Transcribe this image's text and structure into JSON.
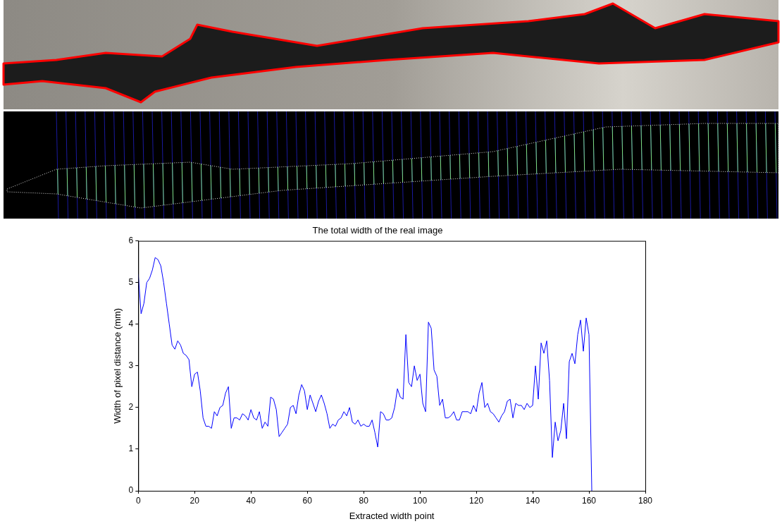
{
  "chart_data": {
    "type": "line",
    "title": "The total width of the real image",
    "x_label": "Extracted width point",
    "y_label": "Width of pixel distance (mm)",
    "color": "#0000ff",
    "grid": false,
    "xlim": [
      0,
      180
    ],
    "xticks": [
      0,
      20,
      40,
      60,
      80,
      100,
      120,
      140,
      160,
      180
    ],
    "ylim": [
      0,
      6
    ],
    "yticks": [
      0,
      1,
      2,
      3,
      4,
      5,
      6
    ],
    "x": [
      0,
      1,
      2,
      3,
      4,
      5,
      6,
      7,
      8,
      9,
      10,
      11,
      12,
      13,
      14,
      15,
      16,
      17,
      18,
      19,
      20,
      21,
      22,
      23,
      24,
      25,
      26,
      27,
      28,
      29,
      30,
      31,
      32,
      33,
      34,
      35,
      36,
      37,
      38,
      39,
      40,
      41,
      42,
      43,
      44,
      45,
      46,
      47,
      48,
      49,
      50,
      51,
      52,
      53,
      54,
      55,
      56,
      57,
      58,
      59,
      60,
      61,
      62,
      63,
      64,
      65,
      66,
      67,
      68,
      69,
      70,
      71,
      72,
      73,
      74,
      75,
      76,
      77,
      78,
      79,
      80,
      81,
      82,
      83,
      84,
      85,
      86,
      87,
      88,
      89,
      90,
      91,
      92,
      93,
      94,
      95,
      96,
      97,
      98,
      99,
      100,
      101,
      102,
      103,
      104,
      105,
      106,
      107,
      108,
      109,
      110,
      111,
      112,
      113,
      114,
      115,
      116,
      117,
      118,
      119,
      120,
      121,
      122,
      123,
      124,
      125,
      126,
      127,
      128,
      129,
      130,
      131,
      132,
      133,
      134,
      135,
      136,
      137,
      138,
      139,
      140,
      141,
      142,
      143,
      144,
      145,
      146,
      147,
      148,
      149,
      150,
      151,
      152,
      153,
      154,
      155,
      156,
      157,
      158,
      159,
      160,
      161
    ],
    "values": [
      5.2,
      4.25,
      4.5,
      5.0,
      5.1,
      5.3,
      5.6,
      5.55,
      5.4,
      5.0,
      4.5,
      4.0,
      3.5,
      3.4,
      3.6,
      3.5,
      3.3,
      3.25,
      3.15,
      2.5,
      2.8,
      2.85,
      2.4,
      1.75,
      1.55,
      1.55,
      1.5,
      1.9,
      1.8,
      2.0,
      2.05,
      2.35,
      2.5,
      1.5,
      1.75,
      1.75,
      1.7,
      1.85,
      1.8,
      1.7,
      1.95,
      1.75,
      1.7,
      1.9,
      1.5,
      1.65,
      1.55,
      2.25,
      2.2,
      1.95,
      1.3,
      1.4,
      1.5,
      1.6,
      2.0,
      2.05,
      1.85,
      2.3,
      2.55,
      2.4,
      1.95,
      2.3,
      2.1,
      1.9,
      2.15,
      2.3,
      2.1,
      1.85,
      1.5,
      1.6,
      1.55,
      1.7,
      1.75,
      1.9,
      1.8,
      2.0,
      1.65,
      1.6,
      1.7,
      1.55,
      1.6,
      1.55,
      1.55,
      1.7,
      1.4,
      1.05,
      1.9,
      1.85,
      1.7,
      1.7,
      1.75,
      2.0,
      2.45,
      2.25,
      2.2,
      3.75,
      2.6,
      2.5,
      3.0,
      2.65,
      2.8,
      2.1,
      1.9,
      4.05,
      3.9,
      2.9,
      2.75,
      2.05,
      2.2,
      1.75,
      1.75,
      1.8,
      1.9,
      1.7,
      1.7,
      1.9,
      1.9,
      1.9,
      1.85,
      2.05,
      1.9,
      2.35,
      2.6,
      2.0,
      2.1,
      1.9,
      1.85,
      1.75,
      1.65,
      1.8,
      1.9,
      2.15,
      2.2,
      1.75,
      2.1,
      2.05,
      2.05,
      1.95,
      2.1,
      2.0,
      2.05,
      3.0,
      2.2,
      3.55,
      3.3,
      3.6,
      2.65,
      0.8,
      1.65,
      1.2,
      1.45,
      2.1,
      1.25,
      3.1,
      3.3,
      3.05,
      3.75,
      4.1,
      3.35,
      4.15,
      3.75,
      0
    ]
  }
}
